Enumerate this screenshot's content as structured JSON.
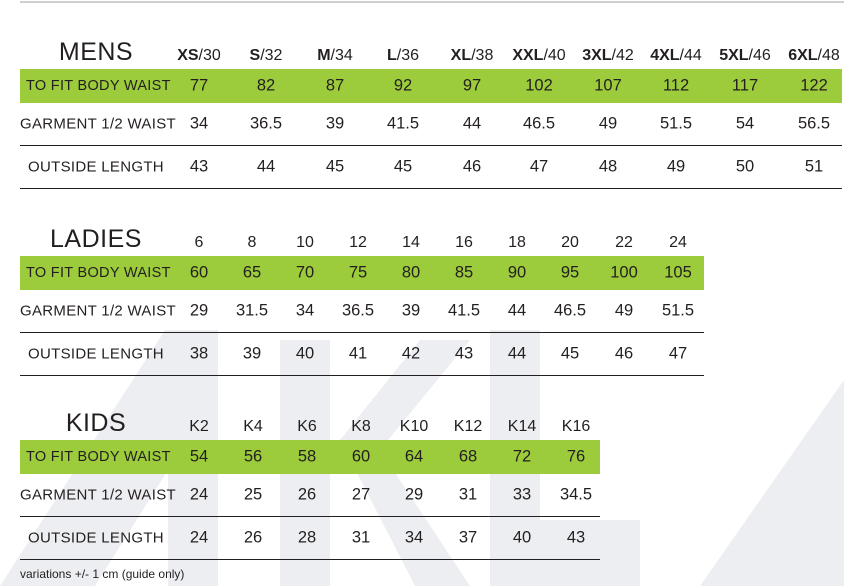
{
  "brand": {
    "watermark": "AKL",
    "colors": {
      "accent": "#9ccb3b",
      "text": "#231f20",
      "watermark": "#eceef1"
    }
  },
  "sections": [
    {
      "title": "MENS",
      "sizes": [
        {
          "bold": "XS",
          "rest": "/30"
        },
        {
          "bold": "S",
          "rest": "/32"
        },
        {
          "bold": "M",
          "rest": "/34"
        },
        {
          "bold": "L",
          "rest": "/36"
        },
        {
          "bold": "XL",
          "rest": "/38"
        },
        {
          "bold": "XXL",
          "rest": "/40"
        },
        {
          "bold": "3XL",
          "rest": "/42"
        },
        {
          "bold": "4XL",
          "rest": "/44"
        },
        {
          "bold": "5XL",
          "rest": "/46"
        },
        {
          "bold": "6XL",
          "rest": "/48"
        }
      ],
      "rows": [
        {
          "label": "TO FIT BODY WAIST",
          "values": [
            "77",
            "82",
            "87",
            "92",
            "97",
            "102",
            "107",
            "112",
            "117",
            "122"
          ]
        },
        {
          "label": "GARMENT 1/2 WAIST",
          "values": [
            "34",
            "36.5",
            "39",
            "41.5",
            "44",
            "46.5",
            "49",
            "51.5",
            "54",
            "56.5"
          ]
        },
        {
          "label": "OUTSIDE LENGTH",
          "values": [
            "43",
            "44",
            "45",
            "45",
            "46",
            "47",
            "48",
            "49",
            "50",
            "51"
          ]
        }
      ]
    },
    {
      "title": "LADIES",
      "sizes": [
        {
          "bold": "",
          "rest": "6"
        },
        {
          "bold": "",
          "rest": "8"
        },
        {
          "bold": "",
          "rest": "10"
        },
        {
          "bold": "",
          "rest": "12"
        },
        {
          "bold": "",
          "rest": "14"
        },
        {
          "bold": "",
          "rest": "16"
        },
        {
          "bold": "",
          "rest": "18"
        },
        {
          "bold": "",
          "rest": "20"
        },
        {
          "bold": "",
          "rest": "22"
        },
        {
          "bold": "",
          "rest": "24"
        }
      ],
      "rows": [
        {
          "label": "TO FIT BODY WAIST",
          "values": [
            "60",
            "65",
            "70",
            "75",
            "80",
            "85",
            "90",
            "95",
            "100",
            "105"
          ]
        },
        {
          "label": "GARMENT 1/2 WAIST",
          "values": [
            "29",
            "31.5",
            "34",
            "36.5",
            "39",
            "41.5",
            "44",
            "46.5",
            "49",
            "51.5"
          ]
        },
        {
          "label": "OUTSIDE LENGTH",
          "values": [
            "38",
            "39",
            "40",
            "41",
            "42",
            "43",
            "44",
            "45",
            "46",
            "47"
          ]
        }
      ]
    },
    {
      "title": "KIDS",
      "sizes": [
        {
          "bold": "",
          "rest": "K2"
        },
        {
          "bold": "",
          "rest": "K4"
        },
        {
          "bold": "",
          "rest": "K6"
        },
        {
          "bold": "",
          "rest": "K8"
        },
        {
          "bold": "",
          "rest": "K10"
        },
        {
          "bold": "",
          "rest": "K12"
        },
        {
          "bold": "",
          "rest": "K14"
        },
        {
          "bold": "",
          "rest": "K16"
        }
      ],
      "rows": [
        {
          "label": "TO FIT BODY WAIST",
          "values": [
            "54",
            "56",
            "58",
            "60",
            "64",
            "68",
            "72",
            "76"
          ]
        },
        {
          "label": "GARMENT 1/2 WAIST",
          "values": [
            "24",
            "25",
            "26",
            "27",
            "29",
            "31",
            "33",
            "34.5"
          ]
        },
        {
          "label": "OUTSIDE LENGTH",
          "values": [
            "24",
            "26",
            "28",
            "31",
            "34",
            "37",
            "40",
            "43"
          ]
        }
      ]
    }
  ],
  "footnote": "variations +/- 1 cm (guide only)"
}
